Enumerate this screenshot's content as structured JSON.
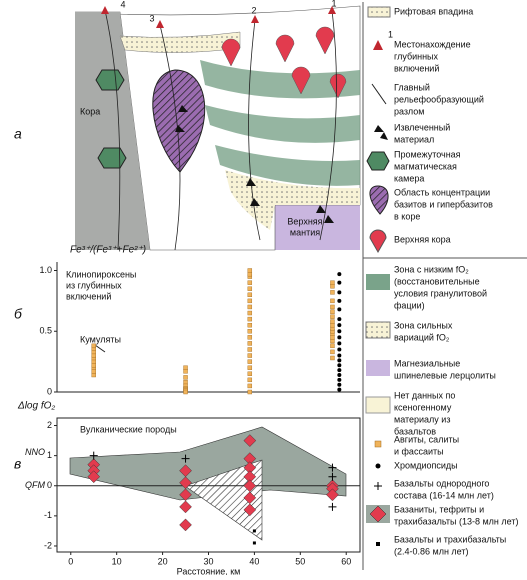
{
  "panel_labels": [
    "а",
    "б",
    "в"
  ],
  "diagram": {
    "numbers": [
      "1",
      "2",
      "3",
      "4"
    ],
    "crust_label": "Кора",
    "mantle_label": [
      "Верхняя",
      "мантия"
    ]
  },
  "legend": [
    {
      "lines": [
        "Рифтовая впадина"
      ]
    },
    {
      "marker_label": "1",
      "lines": [
        "Местонахождение",
        "глубинных",
        "включений"
      ]
    },
    {
      "lines": [
        "Главный",
        "рельефообразующий",
        "разлом"
      ]
    },
    {
      "lines": [
        "Извлеченный",
        "материал"
      ]
    },
    {
      "lines": [
        "Промежуточная",
        "магматическая",
        "камера"
      ]
    },
    {
      "lines": [
        "Область концентрации",
        "базитов и гипербазитов",
        "в коре"
      ]
    },
    {
      "lines": [
        "Верхняя кора"
      ]
    },
    {
      "lines": [
        "Зона с низким fO₂",
        "(восстановительные",
        "условия гранулитовой",
        "фации)"
      ]
    },
    {
      "lines": [
        "Зона сильных",
        "вариаций fO₂"
      ]
    },
    {
      "lines": [
        "Магнезиальные",
        "шпинелевые лерцолиты"
      ]
    },
    {
      "lines": [
        "Нет данных по",
        "ксеногенному",
        "материалу из",
        "базальтов"
      ]
    },
    {
      "lines": [
        "Авгиты, салиты",
        "и фассаиты"
      ]
    },
    {
      "lines": [
        "Хромдиопсиды"
      ]
    },
    {
      "lines": [
        "Базальты однородного",
        "состава  (16-14 млн лет)"
      ]
    },
    {
      "lines": [
        "Базаниты, тефриты и",
        "трахибазальты (13-8 млн лет)"
      ]
    },
    {
      "lines": [
        "Базальты и трахибазальты",
        "(2.4-0.86 млн лет)"
      ]
    }
  ],
  "chart_data": [
    {
      "type": "scatter",
      "ylabel": "Fe³⁺/(Fe³⁺+Fe²⁺)",
      "annotations": [
        {
          "text": [
            "Клинопироксены",
            "из глубинных",
            "включений"
          ]
        },
        {
          "text": [
            "Кумуляты"
          ]
        }
      ],
      "xlim": [
        -3,
        63
      ],
      "ylim": [
        0,
        1.07
      ],
      "yticks": [
        0,
        0.5,
        {
          "value": 1,
          "label": "1.0"
        }
      ],
      "series": [
        {
          "marker": "square",
          "color": "#f0b35a",
          "x": [
            5,
            5,
            5,
            5,
            5,
            5,
            5,
            5,
            5,
            5,
            25,
            25,
            25,
            25,
            25,
            25,
            25,
            25,
            25,
            39,
            39,
            39,
            39,
            39,
            39,
            39,
            39,
            39,
            39,
            39,
            39,
            39,
            39,
            39,
            39,
            39,
            39,
            39,
            39,
            39,
            39,
            57,
            57,
            57,
            57,
            57,
            57,
            57,
            57,
            57,
            57,
            57,
            57,
            57,
            57,
            57,
            57,
            57
          ],
          "values": [
            0.14,
            0.17,
            0.2,
            0.22,
            0.25,
            0.28,
            0.3,
            0.33,
            0.36,
            0.38,
            0.2,
            0.17,
            0.12,
            0.08,
            0.05,
            0.03,
            0.02,
            0.01,
            0,
            0,
            0.05,
            0.1,
            0.15,
            0.2,
            0.25,
            0.3,
            0.35,
            0.4,
            0.45,
            0.5,
            0.55,
            0.6,
            0.65,
            0.7,
            0.75,
            0.8,
            0.85,
            0.9,
            0.95,
            0.97,
            1,
            0.28,
            0.33,
            0.38,
            0.42,
            0.45,
            0.48,
            0.5,
            0.52,
            0.55,
            0.58,
            0.62,
            0.66,
            0.7,
            0.75,
            0.82,
            0.87,
            0.9
          ]
        },
        {
          "marker": "dot",
          "color": "#000000",
          "x": [
            58.5,
            58.5,
            58.5,
            58.5,
            58.5,
            58.5,
            58.5,
            58.5,
            58.5,
            58.5,
            58.5,
            58.5,
            58.5,
            58.5,
            58.5,
            58.5,
            58.5,
            58.5,
            58.5
          ],
          "values": [
            0.02,
            0.06,
            0.1,
            0.14,
            0.18,
            0.22,
            0.26,
            0.3,
            0.35,
            0.4,
            0.45,
            0.5,
            0.55,
            0.6,
            0.68,
            0.75,
            0.82,
            0.9,
            0.97
          ]
        }
      ]
    },
    {
      "type": "scatter",
      "ylabel": "Δlog fO₂",
      "xlabel": "Расстояние, км",
      "annotations": [
        {
          "text": [
            "Вулканические породы"
          ]
        }
      ],
      "reference_lines": [
        {
          "label": "NNO",
          "value": 1.1,
          "draw_line": false
        },
        {
          "label": "QFM",
          "value": 0,
          "draw_line": true
        }
      ],
      "xlim": [
        -3,
        63
      ],
      "ylim": [
        -2.2,
        2.25
      ],
      "xticks": [
        0,
        10,
        20,
        30,
        40,
        50,
        60
      ],
      "yticks": [
        -2,
        -1,
        0,
        1,
        2
      ],
      "series": [
        {
          "marker": "diamond",
          "color": "#e23b4e",
          "x": [
            5,
            5,
            5,
            25,
            25,
            25,
            25,
            25,
            39,
            39,
            39,
            39,
            39,
            39,
            39,
            57,
            57,
            57
          ],
          "values": [
            0.7,
            0.5,
            0.3,
            0.5,
            0.1,
            -0.3,
            -0.7,
            -1.3,
            1.5,
            0.9,
            0.6,
            0.3,
            0,
            -0.4,
            -0.8,
            0,
            -0.1,
            -0.3
          ]
        },
        {
          "marker": "cross",
          "color": "#000000",
          "x": [
            5,
            25,
            57,
            57,
            57
          ],
          "values": [
            1,
            0.9,
            0.6,
            0.3,
            -0.7
          ]
        },
        {
          "marker": "smallsquare",
          "color": "#000000",
          "x": [
            40,
            40
          ],
          "values": [
            -1.5,
            -1.9
          ]
        }
      ]
    }
  ]
}
